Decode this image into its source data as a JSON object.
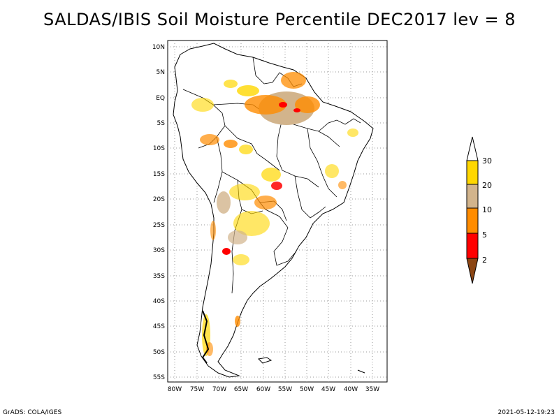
{
  "title": "SALDAS/IBIS Soil Moisture Percentile DEC2017 lev = 8",
  "footer": {
    "left": "GrADS: COLA/IGES",
    "right": "2021-05-12-19:23"
  },
  "axes": {
    "lat_labels": [
      "10N",
      "5N",
      "EQ",
      "5S",
      "10S",
      "15S",
      "20S",
      "25S",
      "30S",
      "35S",
      "40S",
      "45S",
      "50S",
      "55S"
    ],
    "lon_labels": [
      "80W",
      "75W",
      "70W",
      "65W",
      "60W",
      "55W",
      "50W",
      "45W",
      "40W",
      "35W"
    ],
    "grid": true,
    "grid_style": "dotted"
  },
  "legend": {
    "labels": [
      "2",
      "5",
      "10",
      "20",
      "30"
    ],
    "colors": [
      "#8b4513",
      "#ff0000",
      "#ff8c00",
      "#d2b48c",
      "#ffd700",
      "#ffffff"
    ]
  }
}
